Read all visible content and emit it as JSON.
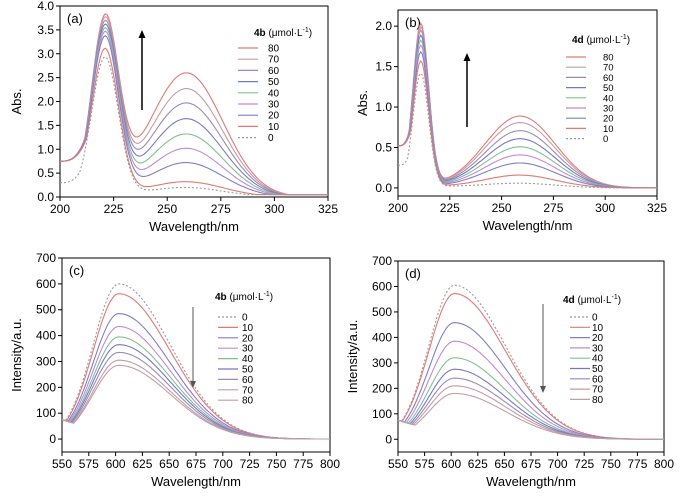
{
  "colors": {
    "axis": "#000000",
    "arrow": "#555555",
    "series": [
      "#9b9b9b",
      "#e07a74",
      "#a3a3cf",
      "#7f7fc6",
      "#82c090",
      "#7878c8",
      "#c08ad6",
      "#9a8cb4",
      "#c49ca4",
      "#e07a74"
    ]
  },
  "chart_data": [
    {
      "type": "line",
      "panel_label": "(a)",
      "xlabel": "Wavelength/nm",
      "ylabel": "Abs.",
      "xlim": [
        200,
        325
      ],
      "ylim": [
        0,
        4.0
      ],
      "xticks": [
        "200",
        "225",
        "250",
        "275",
        "300",
        "325"
      ],
      "yticks": [
        "0.0",
        "0.5",
        "1.0",
        "1.5",
        "2.0",
        "2.5",
        "3.0",
        "3.5",
        "4.0"
      ],
      "legend_compound": "4b",
      "legend_unit": "(μmol·L",
      "legend_unit_exp": "-1",
      "legend_unit_end": ")",
      "legend_position": "top-right",
      "arrow_direction": "up",
      "series": [
        {
          "name": "80",
          "color": "#e07a74",
          "peak1": 3.58,
          "peak2": 2.58
        },
        {
          "name": "70",
          "color": "#c49ca4",
          "peak1": 3.55,
          "peak2": 2.25
        },
        {
          "name": "60",
          "color": "#9a8cb4",
          "peak1": 3.5,
          "peak2": 1.95
        },
        {
          "name": "50",
          "color": "#7878c8",
          "peak1": 3.45,
          "peak2": 1.62
        },
        {
          "name": "40",
          "color": "#82c090",
          "peak1": 3.4,
          "peak2": 1.3
        },
        {
          "name": "30",
          "color": "#c08ad6",
          "peak1": 3.35,
          "peak2": 1.0
        },
        {
          "name": "20",
          "color": "#7f7fc6",
          "peak1": 3.28,
          "peak2": 0.7
        },
        {
          "name": "10",
          "color": "#e07a74",
          "peak1": 3.05,
          "peak2": 0.3
        },
        {
          "name": "0",
          "color": "#9b9b9b",
          "dashed": true,
          "peak1": 2.88,
          "peak2": 0.18
        }
      ]
    },
    {
      "type": "line",
      "panel_label": "(b)",
      "xlabel": "Wavelength/nm",
      "ylabel": "Abs.",
      "xlim": [
        200,
        325
      ],
      "ylim": [
        -0.1,
        2.2
      ],
      "xticks": [
        "200",
        "225",
        "250",
        "275",
        "300",
        "325"
      ],
      "yticks": [
        "0.0",
        "0.5",
        "1.0",
        "1.5",
        "2.0"
      ],
      "legend_compound": "4d",
      "legend_unit": "(μmol·L",
      "legend_unit_exp": "-1",
      "legend_unit_end": ")",
      "legend_position": "top-right",
      "arrow_direction": "up",
      "series": [
        {
          "name": "80",
          "color": "#e07a74",
          "peak1": 2.0,
          "peak2": 0.88
        },
        {
          "name": "70",
          "color": "#c49ca4",
          "peak1": 1.96,
          "peak2": 0.8
        },
        {
          "name": "60",
          "color": "#9a8cb4",
          "peak1": 1.92,
          "peak2": 0.7
        },
        {
          "name": "50",
          "color": "#7878c8",
          "peak1": 1.86,
          "peak2": 0.6
        },
        {
          "name": "40",
          "color": "#82c090",
          "peak1": 1.8,
          "peak2": 0.5
        },
        {
          "name": "30",
          "color": "#c08ad6",
          "peak1": 1.74,
          "peak2": 0.4
        },
        {
          "name": "20",
          "color": "#7f7fc6",
          "peak1": 1.66,
          "peak2": 0.3
        },
        {
          "name": "10",
          "color": "#e07a74",
          "peak1": 1.55,
          "peak2": 0.15
        },
        {
          "name": "0",
          "color": "#9b9b9b",
          "dashed": true,
          "peak1": 1.4,
          "peak2": 0.05
        }
      ]
    },
    {
      "type": "line",
      "panel_label": "(c)",
      "xlabel": "Wavelength/nm",
      "ylabel": "Intensity/a.u.",
      "xlim": [
        550,
        800
      ],
      "ylim": [
        -50,
        700
      ],
      "xticks": [
        "550",
        "575",
        "600",
        "625",
        "650",
        "675",
        "700",
        "725",
        "750",
        "775",
        "800"
      ],
      "yticks": [
        "0",
        "100",
        "200",
        "300",
        "400",
        "500",
        "600",
        "700"
      ],
      "legend_compound": "4b",
      "legend_unit": "(μmol·L",
      "legend_unit_exp": "-1",
      "legend_unit_end": ")",
      "legend_position": "top-right",
      "arrow_direction": "down",
      "series": [
        {
          "name": "0",
          "color": "#9b9b9b",
          "dashed": true,
          "peak": 600
        },
        {
          "name": "10",
          "color": "#e07a74",
          "peak": 562
        },
        {
          "name": "20",
          "color": "#7f7fc6",
          "peak": 485
        },
        {
          "name": "30",
          "color": "#c08ad6",
          "peak": 435
        },
        {
          "name": "40",
          "color": "#82c090",
          "peak": 395
        },
        {
          "name": "50",
          "color": "#7878c8",
          "peak": 365
        },
        {
          "name": "60",
          "color": "#9a8cb4",
          "peak": 335
        },
        {
          "name": "70",
          "color": "#c49ca4",
          "peak": 305
        },
        {
          "name": "80",
          "color": "#c49ca4",
          "peak": 285
        }
      ]
    },
    {
      "type": "line",
      "panel_label": "(d)",
      "xlabel": "Wavelength/nm",
      "ylabel": "Intensity/a.u.",
      "xlim": [
        550,
        800
      ],
      "ylim": [
        -50,
        700
      ],
      "xticks": [
        "550",
        "575",
        "600",
        "625",
        "650",
        "675",
        "700",
        "725",
        "750",
        "775",
        "800"
      ],
      "yticks": [
        "0",
        "100",
        "200",
        "300",
        "400",
        "500",
        "600",
        "700"
      ],
      "legend_compound": "4d",
      "legend_unit": "(μmol·L",
      "legend_unit_exp": "-1",
      "legend_unit_end": ")",
      "legend_position": "top-right",
      "arrow_direction": "down",
      "series": [
        {
          "name": "0",
          "color": "#9b9b9b",
          "dashed": true,
          "peak": 605
        },
        {
          "name": "10",
          "color": "#e07a74",
          "peak": 572
        },
        {
          "name": "20",
          "color": "#7f7fc6",
          "peak": 458
        },
        {
          "name": "30",
          "color": "#c08ad6",
          "peak": 385
        },
        {
          "name": "40",
          "color": "#82c090",
          "peak": 320
        },
        {
          "name": "50",
          "color": "#7878c8",
          "peak": 275
        },
        {
          "name": "60",
          "color": "#9a8cb4",
          "peak": 240
        },
        {
          "name": "70",
          "color": "#c49ca4",
          "peak": 210
        },
        {
          "name": "80",
          "color": "#c49ca4",
          "peak": 180
        }
      ]
    }
  ]
}
